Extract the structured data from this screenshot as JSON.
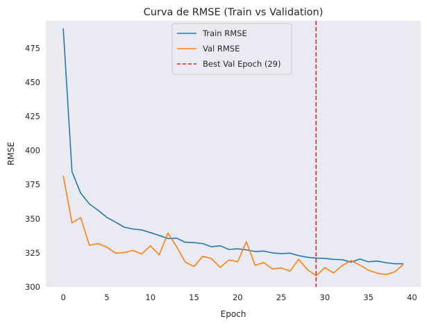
{
  "chart_data": {
    "type": "line",
    "title": "Curva de RMSE (Train vs Validation)",
    "xlabel": "Epoch",
    "ylabel": "RMSE",
    "xlim": [
      -2,
      41
    ],
    "ylim": [
      300,
      495
    ],
    "xticks": [
      0,
      5,
      10,
      15,
      20,
      25,
      30,
      35,
      40
    ],
    "yticks": [
      300,
      325,
      350,
      375,
      400,
      425,
      450,
      475
    ],
    "grid": false,
    "background": "#eaeaf2",
    "legend_position": "top-center",
    "x": [
      0,
      1,
      2,
      3,
      4,
      5,
      6,
      7,
      8,
      9,
      10,
      11,
      12,
      13,
      14,
      15,
      16,
      17,
      18,
      19,
      20,
      21,
      22,
      23,
      24,
      25,
      26,
      27,
      28,
      29,
      30,
      31,
      32,
      33,
      34,
      35,
      36,
      37,
      38,
      39
    ],
    "series": [
      {
        "name": "Train RMSE",
        "color": "#1f77b4",
        "values": [
          489.5,
          384.5,
          368.8,
          360.8,
          356.2,
          351.0,
          347.5,
          343.8,
          342.5,
          341.8,
          339.8,
          337.8,
          335.5,
          335.8,
          332.8,
          332.5,
          331.8,
          329.5,
          330.2,
          327.5,
          328.0,
          327.2,
          326.0,
          326.3,
          325.0,
          324.5,
          324.8,
          323.0,
          321.8,
          321.2,
          321.0,
          320.2,
          320.0,
          318.2,
          320.5,
          318.5,
          319.0,
          317.8,
          317.0,
          317.0
        ]
      },
      {
        "name": "Val RMSE",
        "color": "#ff7f0e",
        "values": [
          381.5,
          347.0,
          350.8,
          330.5,
          331.8,
          329.2,
          324.8,
          325.2,
          326.8,
          324.2,
          330.2,
          323.5,
          339.5,
          329.5,
          318.2,
          315.0,
          322.5,
          320.8,
          314.3,
          319.8,
          318.5,
          333.2,
          316.0,
          317.8,
          313.2,
          314.0,
          311.5,
          320.3,
          312.8,
          308.2,
          314.2,
          310.3,
          315.8,
          319.3,
          316.2,
          312.2,
          310.2,
          309.0,
          311.0,
          316.5
        ]
      }
    ],
    "vlines": [
      {
        "name": "Best Val Epoch (29)",
        "x": 29,
        "color": "#d62728",
        "style": "dashed"
      }
    ]
  }
}
